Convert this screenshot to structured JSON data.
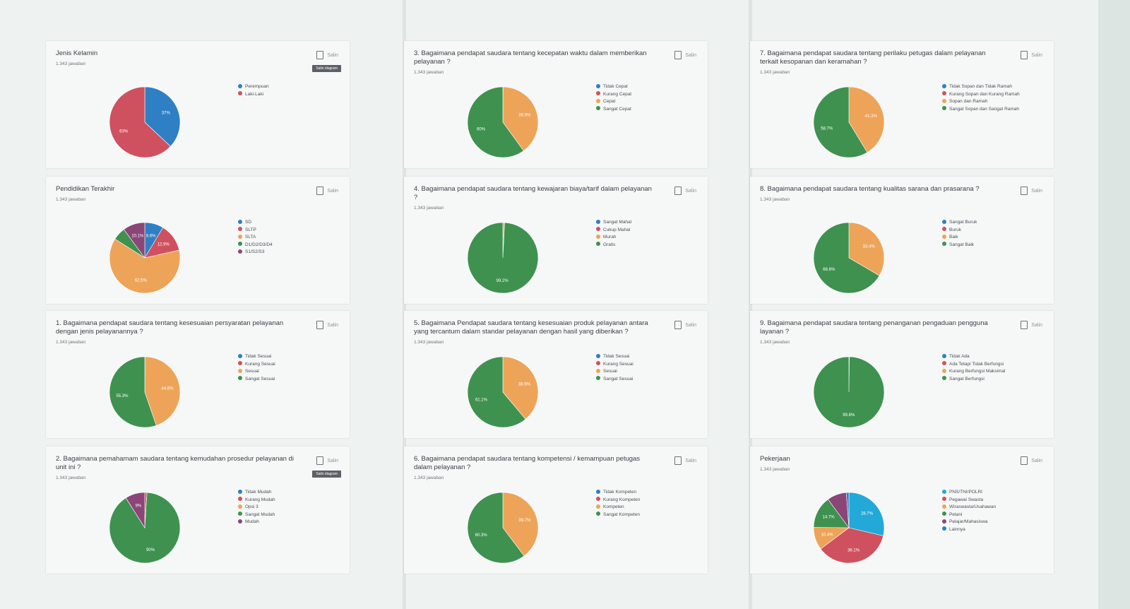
{
  "chart_data": [
    {
      "type": "pie",
      "title": "Jenis Kelamin",
      "subtitle": "1.343 jawaban",
      "copy_button": "Salin",
      "tooltip": "Salin diagram",
      "categories": [
        "Perempuan",
        "Laki-Laki"
      ],
      "values": [
        37,
        63
      ],
      "value_labels": [
        "37%",
        "63%"
      ],
      "colors": [
        "#2f7fc4",
        "#cf5160"
      ]
    },
    {
      "type": "pie",
      "title": "Pendidikan Terakhir",
      "subtitle": "1.343 jawaban",
      "copy_button": "Salin",
      "categories": [
        "SD",
        "SLTP",
        "SLTA",
        "D1/D2/D3/D4",
        "S1/S2/S3"
      ],
      "values": [
        8.6,
        12.9,
        62.5,
        5.9,
        10.1
      ],
      "value_labels": [
        "8.6%",
        "12.9%",
        "62.5%",
        null,
        "10.1%"
      ],
      "colors": [
        "#2f7fc4",
        "#cf5160",
        "#eda459",
        "#3f9150",
        "#8b4677"
      ]
    },
    {
      "type": "pie",
      "title": "1. Bagaimana pendapat saudara tentang kesesuaian persyaratan pelayanan dengan jenis pelayanannya ?",
      "subtitle": "1.343 jawaban",
      "copy_button": "Salin",
      "categories": [
        "Tidak Sesuai",
        "Kurang Sesuai",
        "Sesuai",
        "Sangat Sesuai"
      ],
      "values": [
        0,
        0.1,
        44.6,
        55.3
      ],
      "value_labels": [
        null,
        null,
        "44.6%",
        "55.3%"
      ],
      "colors": [
        "#2f7fc4",
        "#cf5160",
        "#eda459",
        "#3f9150"
      ]
    },
    {
      "type": "pie",
      "title": "2. Bagaimana pemahamam saudara tentang kemudahan prosedur pelayanan di unit ini ?",
      "subtitle": "1.343 jawaban",
      "copy_button": "Salin",
      "tooltip": "Salin diagram",
      "categories": [
        "Tidak Mudah",
        "Kurang Mudah",
        "Opsi 3",
        "Sangat Mudah",
        "Mudah"
      ],
      "values": [
        0,
        1,
        0,
        90,
        9
      ],
      "value_labels": [
        null,
        null,
        null,
        "90%",
        "9%"
      ],
      "colors": [
        "#2f7fc4",
        "#cf5160",
        "#eda459",
        "#3f9150",
        "#8b4677"
      ]
    },
    {
      "type": "pie",
      "title": "3. Bagaimana pendapat saudara tentang kecepatan waktu dalam memberikan pelayanan ?",
      "subtitle": "1.343 jawaban",
      "copy_button": "Salin",
      "categories": [
        "Tidak Cepat",
        "Kurang Cepat",
        "Cepat",
        "Sangat Cepat"
      ],
      "values": [
        0,
        0.1,
        39.9,
        60
      ],
      "value_labels": [
        null,
        null,
        "39.9%",
        "60%"
      ],
      "colors": [
        "#2f7fc4",
        "#cf5160",
        "#eda459",
        "#3f9150"
      ]
    },
    {
      "type": "pie",
      "title": "4. Bagaimana pendapat saudara tentang kewajaran biaya/tarif dalam pelayanan ?",
      "subtitle": "1.343 jawaban",
      "copy_button": "Salin",
      "categories": [
        "Sangat Mahal",
        "Cukup Mahal",
        "Murah",
        "Gratis"
      ],
      "values": [
        0,
        0,
        0.8,
        99.2
      ],
      "value_labels": [
        null,
        null,
        null,
        "99.2%"
      ],
      "colors": [
        "#2f7fc4",
        "#cf5160",
        "#eda459",
        "#3f9150"
      ]
    },
    {
      "type": "pie",
      "title": "5. Bagaimana Pendapat saudara tentang kesesuaian produk pelayanan antara yang tercantum dalam standar pelayanan dengan hasil yang diberikan ?",
      "subtitle": "1.343 jawaban",
      "copy_button": "Salin",
      "categories": [
        "Tidak Sesuai",
        "Kurang Sesuai",
        "Sesuai",
        "Sangat Sesuai"
      ],
      "values": [
        0,
        0,
        38.9,
        61.1
      ],
      "value_labels": [
        null,
        null,
        "38.9%",
        "61.1%"
      ],
      "colors": [
        "#2f7fc4",
        "#cf5160",
        "#eda459",
        "#3f9150"
      ]
    },
    {
      "type": "pie",
      "title": "6. Bagaimana pendapat saudara tentang kompetensi / kemampuan petugas dalam pelayanan ?",
      "subtitle": "1.343 jawaban",
      "copy_button": "Salin",
      "categories": [
        "Tidak Kompeten",
        "Kurang Kompeten",
        "Kompeten",
        "Sangat Kompeten"
      ],
      "values": [
        0,
        0,
        39.7,
        60.3
      ],
      "value_labels": [
        null,
        null,
        "39.7%",
        "60.3%"
      ],
      "colors": [
        "#2f7fc4",
        "#cf5160",
        "#eda459",
        "#3f9150"
      ]
    },
    {
      "type": "pie",
      "title": "7. Bagaimana pendapat saudara tentang perilaku petugas dalam pelayanan terkait kesopanan dan keramahan ?",
      "subtitle": "1.343 jawaban",
      "copy_button": "Salin",
      "categories": [
        "Tidak Sopan dan Tidak Ramah",
        "Kurang Sopan dan Kurang Ramah",
        "Sopan dan Ramah",
        "Sangat Sopan dan Sangat Ramah"
      ],
      "values": [
        0,
        0,
        41.3,
        58.7
      ],
      "value_labels": [
        null,
        null,
        "41.3%",
        "58.7%"
      ],
      "colors": [
        "#2f7fc4",
        "#cf5160",
        "#eda459",
        "#3f9150"
      ]
    },
    {
      "type": "pie",
      "title": "8. Bagaimana pendapat saudara tentang kualitas sarana dan prasarana ?",
      "subtitle": "1.343 jawaban",
      "copy_button": "Salin",
      "categories": [
        "Sangat Buruk",
        "Buruk",
        "Baik",
        "Sangat Baik"
      ],
      "values": [
        0,
        0,
        33.4,
        66.6
      ],
      "value_labels": [
        null,
        null,
        "33.4%",
        "66.6%"
      ],
      "colors": [
        "#2f7fc4",
        "#cf5160",
        "#eda459",
        "#3f9150"
      ]
    },
    {
      "type": "pie",
      "title": "9. Bagaimana pendapat saudara tentang penanganan pengaduan pengguna layanan ?",
      "subtitle": "1.343 jawaban",
      "copy_button": "Salin",
      "categories": [
        "Tidak Ada",
        "Ada Tetapi Tidak Berfungsi",
        "Kurang Berfungsi Maksimal",
        "Sangat Berfungsi"
      ],
      "values": [
        0,
        0,
        0.2,
        99.8
      ],
      "value_labels": [
        null,
        null,
        null,
        "99.8%"
      ],
      "colors": [
        "#2f7fc4",
        "#cf5160",
        "#eda459",
        "#3f9150"
      ]
    },
    {
      "type": "pie",
      "title": "Pekerjaan",
      "subtitle": "1.343 jawaban",
      "copy_button": "Salin",
      "categories": [
        "PNS/TNI/POLRI",
        "Pegawai Swasta",
        "Wiraswasta/Usahawan",
        "Petani",
        "Pelajar/Mahasiswa",
        "Lainnya"
      ],
      "values": [
        28.7,
        36.1,
        10.4,
        14.7,
        8.9,
        1.2
      ],
      "value_labels": [
        "28.7%",
        "36.1%",
        "10.4%",
        "14.7%",
        null,
        null
      ],
      "colors": [
        "#23a9d8",
        "#cf5160",
        "#eda459",
        "#3f9150",
        "#8b4677",
        "#2f7fc4"
      ]
    }
  ]
}
